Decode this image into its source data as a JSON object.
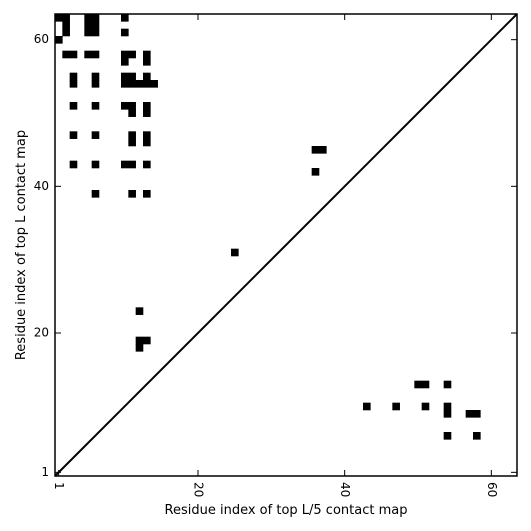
{
  "chart_data": {
    "type": "heatmap",
    "title": "",
    "xlabel": "Residue index of top L/5 contact map",
    "ylabel": "Residue index of top L contact map",
    "xlim": [
      0.5,
      63.5
    ],
    "ylim": [
      0.5,
      63.5
    ],
    "x_ticks": [
      1,
      20,
      40,
      60
    ],
    "y_ticks": [
      1,
      20,
      40,
      60
    ],
    "x_tick_labels": [
      "1",
      "20",
      "40",
      "60"
    ],
    "y_tick_labels": [
      "1",
      "20",
      "40",
      "60"
    ],
    "x_tick_rotation_deg": -90,
    "diagonal": true,
    "grid": false,
    "legend": "none",
    "cell_color": "#000000",
    "background_color": "#ffffff",
    "series": [
      {
        "cells": [
          [
            1,
            63
          ],
          [
            2,
            63
          ],
          [
            5,
            63
          ],
          [
            6,
            63
          ],
          [
            10,
            63
          ],
          [
            2,
            62
          ],
          [
            5,
            62
          ],
          [
            6,
            62
          ],
          [
            2,
            61
          ],
          [
            5,
            61
          ],
          [
            6,
            61
          ],
          [
            10,
            61
          ],
          [
            1,
            60
          ],
          [
            2,
            58
          ],
          [
            3,
            58
          ],
          [
            5,
            58
          ],
          [
            6,
            58
          ],
          [
            10,
            58
          ],
          [
            11,
            58
          ],
          [
            13,
            58
          ],
          [
            10,
            57
          ],
          [
            13,
            57
          ],
          [
            3,
            55
          ],
          [
            6,
            55
          ],
          [
            10,
            55
          ],
          [
            11,
            55
          ],
          [
            13,
            55
          ],
          [
            3,
            54
          ],
          [
            6,
            54
          ],
          [
            10,
            54
          ],
          [
            11,
            54
          ],
          [
            12,
            54
          ],
          [
            13,
            54
          ],
          [
            14,
            54
          ],
          [
            3,
            51
          ],
          [
            6,
            51
          ],
          [
            10,
            51
          ],
          [
            11,
            51
          ],
          [
            13,
            51
          ],
          [
            11,
            50
          ],
          [
            13,
            50
          ],
          [
            3,
            47
          ],
          [
            6,
            47
          ],
          [
            11,
            47
          ],
          [
            13,
            47
          ],
          [
            11,
            46
          ],
          [
            13,
            46
          ],
          [
            36,
            45
          ],
          [
            37,
            45
          ],
          [
            3,
            43
          ],
          [
            6,
            43
          ],
          [
            10,
            43
          ],
          [
            11,
            43
          ],
          [
            13,
            43
          ],
          [
            36,
            42
          ],
          [
            6,
            39
          ],
          [
            11,
            39
          ],
          [
            13,
            39
          ],
          [
            25,
            31
          ],
          [
            12,
            23
          ],
          [
            12,
            19
          ],
          [
            13,
            19
          ],
          [
            12,
            18
          ],
          [
            50,
            13
          ],
          [
            51,
            13
          ],
          [
            54,
            13
          ],
          [
            43,
            10
          ],
          [
            47,
            10
          ],
          [
            51,
            10
          ],
          [
            54,
            10
          ],
          [
            54,
            9
          ],
          [
            57,
            9
          ],
          [
            58,
            9
          ],
          [
            54,
            6
          ],
          [
            58,
            6
          ]
        ]
      }
    ]
  }
}
